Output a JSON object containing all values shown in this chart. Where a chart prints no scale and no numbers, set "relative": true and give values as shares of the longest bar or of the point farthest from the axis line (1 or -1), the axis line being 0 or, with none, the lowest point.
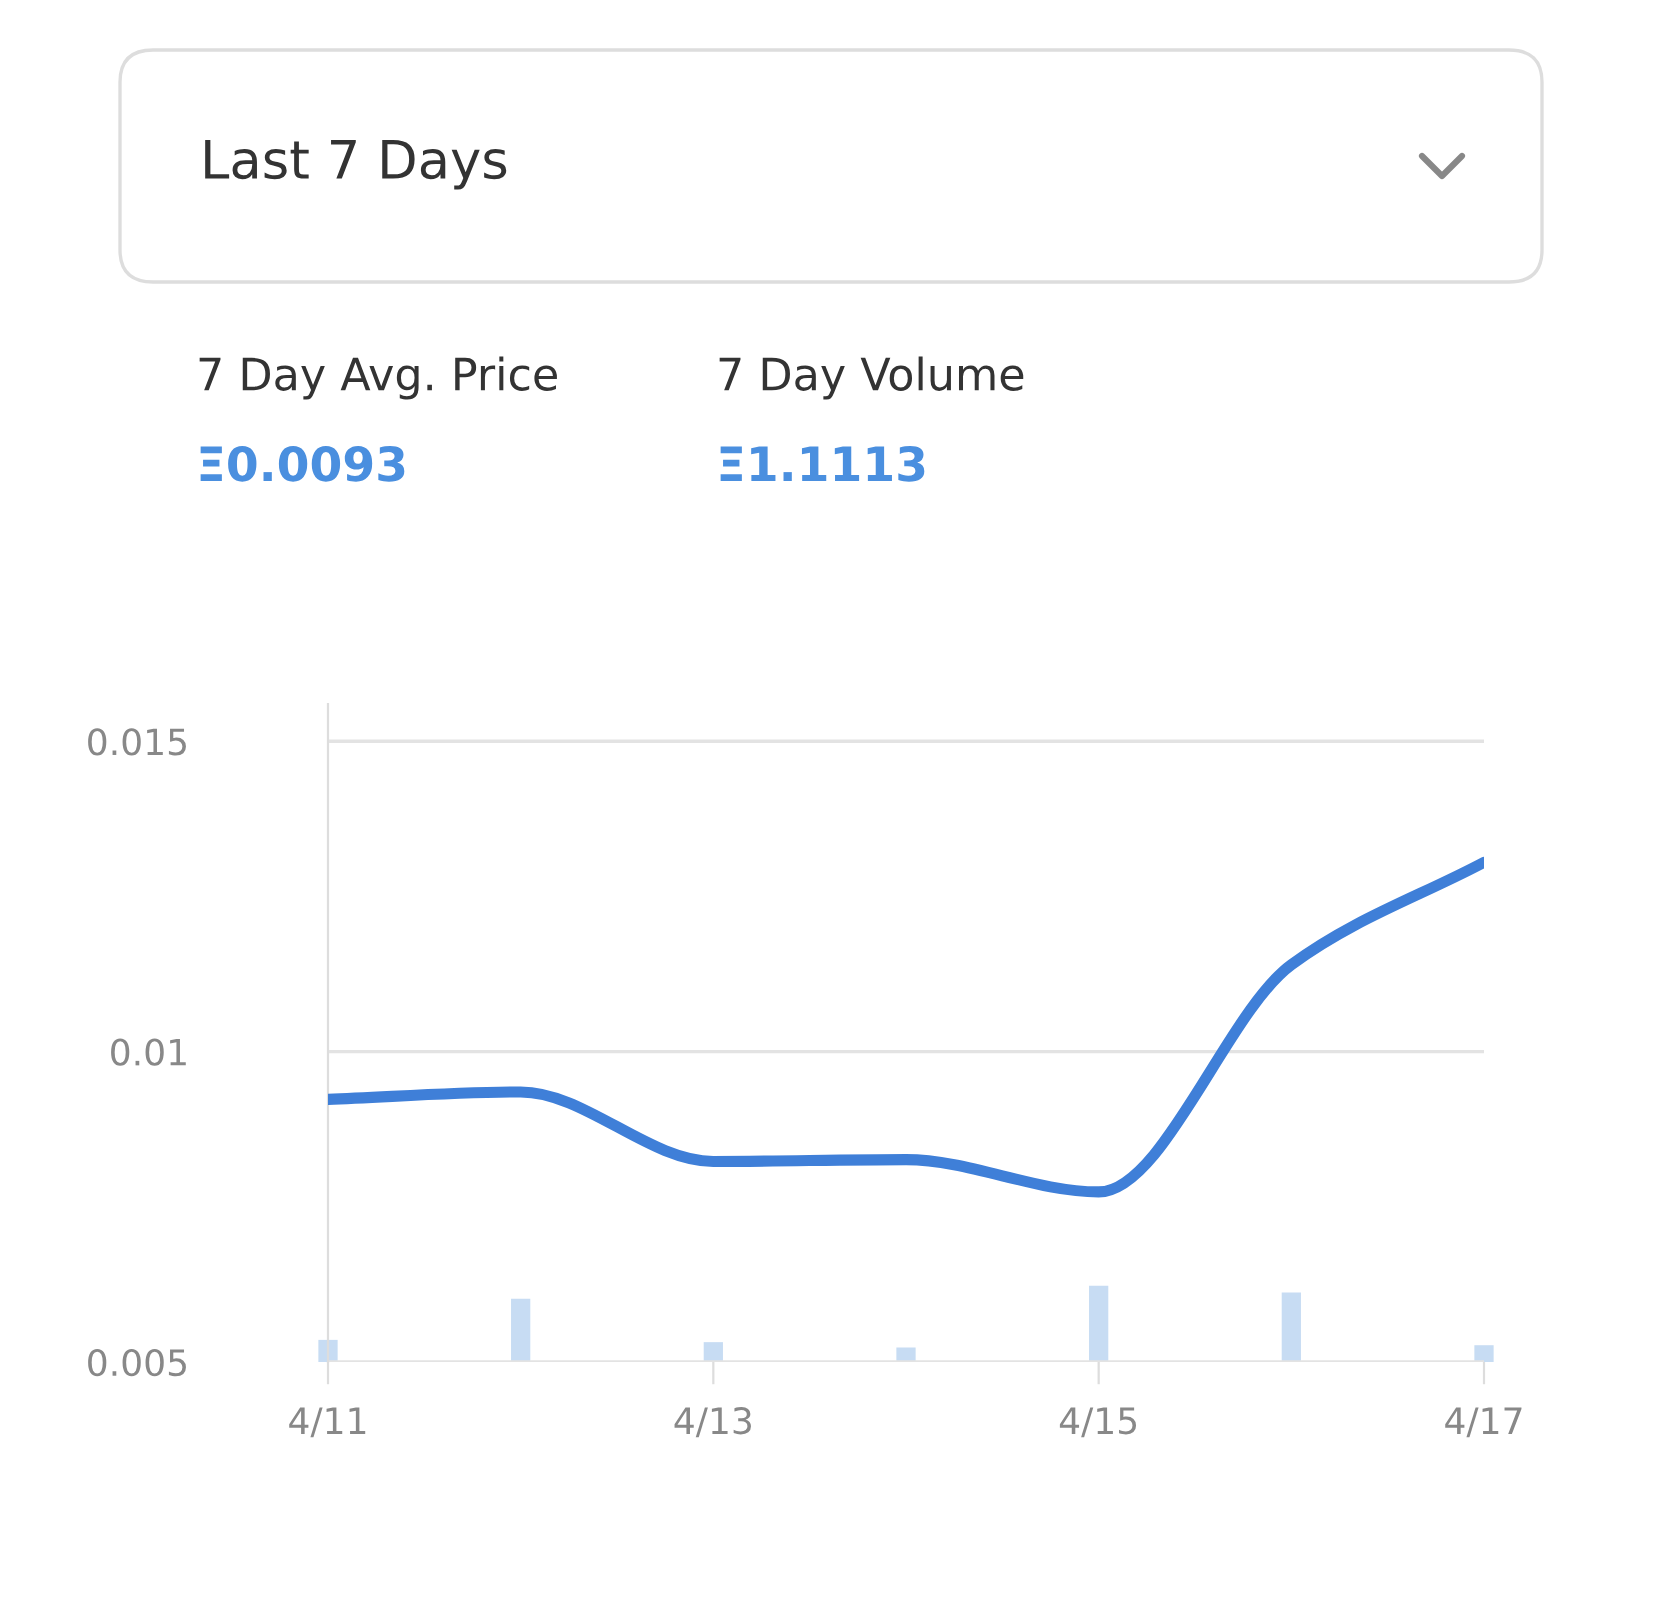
{
  "chart_data": [
    {
      "type": "line",
      "title": "Last 7 Days",
      "annotations": [
        "7 Day Avg. Price",
        "Ξ0.0093",
        "7 Day Volume",
        "Ξ1.1113"
      ],
      "categories": [
        "4/11",
        null,
        "4/13",
        null,
        "4/15",
        null,
        "4/17"
      ],
      "series": [
        {
          "color": "#3f7fd8",
          "values": [
            0.00923,
            0.00935,
            0.00823,
            0.00826,
            0.00774,
            0.0114,
            0.01305
          ]
        }
      ],
      "ylim": [
        0.005,
        0.0156
      ],
      "yticks": [
        0.005,
        0.01,
        0.015
      ],
      "grid": "y",
      "line_style": "solid"
    },
    {
      "type": "bar",
      "relative": true,
      "categories": [
        null,
        null,
        null,
        null,
        null,
        null,
        null
      ],
      "series": [
        {
          "color": "#c7dcf3",
          "values": [
            0.29,
            0.83,
            0.26,
            0.19,
            1.0,
            0.91,
            0.22
          ]
        }
      ]
    }
  ]
}
